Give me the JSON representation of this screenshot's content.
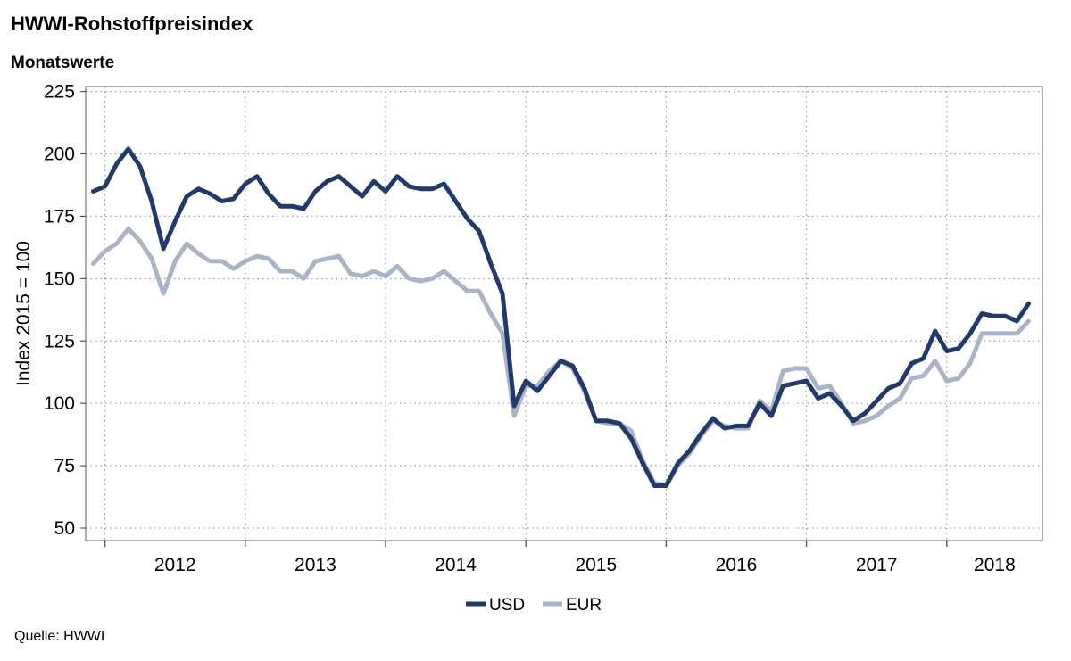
{
  "header": {
    "title": "HWWI-Rohstoffpreisindex",
    "subtitle": "Monatswerte"
  },
  "footer": {
    "source": "Quelle: HWWI"
  },
  "chart_data": {
    "type": "line",
    "title": "HWWI-Rohstoffpreisindex",
    "subtitle": "Monatswerte",
    "ylabel": "Index 2015 = 100",
    "xlabel": "",
    "ylim": [
      45,
      227
    ],
    "yticks": [
      50,
      75,
      100,
      125,
      150,
      175,
      200,
      225
    ],
    "year_labels": [
      "2012",
      "2013",
      "2014",
      "2015",
      "2016",
      "2017",
      "2018"
    ],
    "x_start": "2011-12",
    "grid": true,
    "legend_position": "bottom-center",
    "series": [
      {
        "name": "USD",
        "color": "#223a6b",
        "values": [
          185,
          187,
          196,
          202,
          195,
          181,
          162,
          173,
          183,
          186,
          184,
          181,
          182,
          188,
          191,
          184,
          179,
          179,
          178,
          185,
          189,
          191,
          187,
          183,
          189,
          185,
          191,
          187,
          186,
          186,
          188,
          181,
          174,
          169,
          156,
          144,
          99,
          109,
          105,
          111,
          117,
          115,
          106,
          93,
          93,
          92,
          86,
          76,
          67,
          67,
          76,
          81,
          88,
          94,
          90,
          91,
          91,
          100,
          95,
          107,
          108,
          109,
          102,
          104,
          99,
          93,
          96,
          101,
          106,
          108,
          116,
          118,
          129,
          121,
          122,
          128,
          136,
          135,
          135,
          133,
          140
        ]
      },
      {
        "name": "EUR",
        "color": "#aab4c6",
        "values": [
          156,
          161,
          164,
          170,
          165,
          158,
          144,
          157,
          164,
          160,
          157,
          157,
          154,
          157,
          159,
          158,
          153,
          153,
          150,
          157,
          158,
          159,
          152,
          151,
          153,
          151,
          155,
          150,
          149,
          150,
          153,
          149,
          145,
          145,
          136,
          128,
          95,
          107,
          107,
          113,
          117,
          114,
          105,
          93,
          92,
          92,
          89,
          77,
          68,
          67,
          75,
          80,
          87,
          93,
          91,
          90,
          90,
          101,
          97,
          113,
          114,
          114,
          106,
          107,
          100,
          92,
          93,
          95,
          99,
          102,
          110,
          111,
          117,
          109,
          110,
          116,
          128,
          128,
          128,
          128,
          133
        ]
      }
    ]
  }
}
